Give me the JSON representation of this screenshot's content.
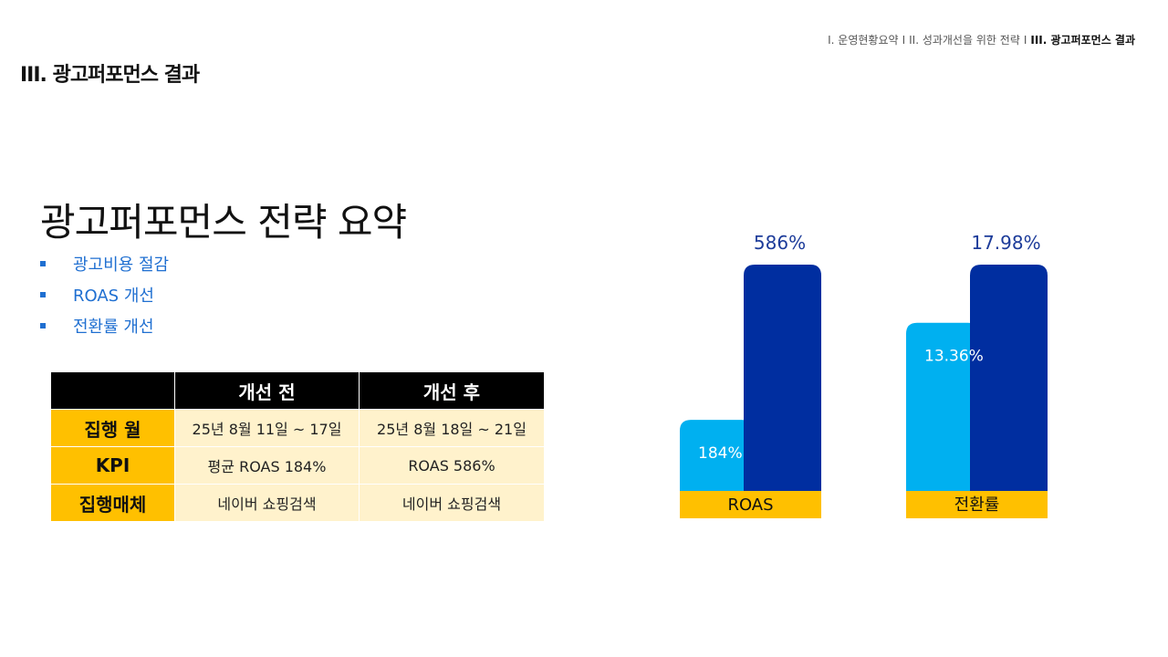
{
  "breadcrumb": {
    "item1": "I. 운영현황요약",
    "sep1": "I",
    "item2": "II. 성과개선을 위한 전략",
    "sep2": "I",
    "item3": "III. 광고퍼포먼스 결과"
  },
  "page_title": "III. 광고퍼포먼스 결과",
  "main_heading": "광고퍼포먼스 전략 요약",
  "bullets": [
    "광고비용 절감",
    "ROAS 개선",
    "전환률 개선"
  ],
  "table": {
    "headers": [
      "",
      "개선 전",
      "개선 후"
    ],
    "rows": [
      {
        "label": "집행 월",
        "before": "25년 8월 11일 ~ 17일",
        "after": "25년 8월 18일 ~ 21일"
      },
      {
        "label": "KPI",
        "before": "평균 ROAS 184%",
        "after": "ROAS 586%"
      },
      {
        "label": "집행매체",
        "before": "네이버 쇼핑검색",
        "after": "네이버 쇼핑검색"
      }
    ]
  },
  "colors": {
    "before": "#00b0f0",
    "after": "#002ea0",
    "category_band": "#ffc000",
    "value_label_after": "#1d3c9a"
  },
  "chart_data": {
    "type": "bar",
    "categories": [
      "ROAS",
      "전환률"
    ],
    "series": [
      {
        "values": [
          184,
          13.36
        ],
        "labels": [
          "184%",
          "13.36%"
        ]
      },
      {
        "values": [
          586,
          17.98
        ],
        "labels": [
          "586%",
          "17.98%"
        ]
      }
    ],
    "note": "each category plotted on its own scale"
  }
}
